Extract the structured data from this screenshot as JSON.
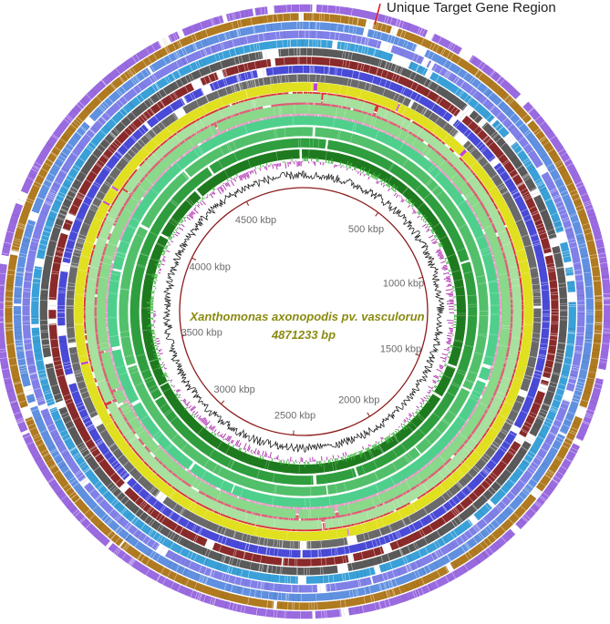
{
  "genome": {
    "organism": "Xanthomonas axonopodis pv. vasculorun",
    "length_label": "4871233 bp",
    "length_bp": 4871233,
    "title_color": "#8a8a10"
  },
  "annotation": {
    "label": "Unique Target Gene Region",
    "line_color": "#e02020"
  },
  "axis": {
    "ticks": [
      {
        "bp": 500000,
        "label": "500 kbp"
      },
      {
        "bp": 1000000,
        "label": "1000 kbp"
      },
      {
        "bp": 1500000,
        "label": "1500 kbp"
      },
      {
        "bp": 2000000,
        "label": "2000 kbp"
      },
      {
        "bp": 2500000,
        "label": "2500 kbp"
      },
      {
        "bp": 3000000,
        "label": "3000 kbp"
      },
      {
        "bp": 3500000,
        "label": "3500 kbp"
      },
      {
        "bp": 4000000,
        "label": "4000 kbp"
      },
      {
        "bp": 4500000,
        "label": "4500 kbp"
      }
    ],
    "backbone_color": "#8b1a1a"
  },
  "gc_content_color": "#222222",
  "gc_skew_colors": {
    "positive": "#3cb43c",
    "negative": "#b43cb4"
  },
  "rings_inner": [
    {
      "color": "#1e7a1e"
    },
    {
      "color": "#2f9e3f"
    },
    {
      "color": "#52c06a"
    },
    {
      "color": "#4ed08c"
    },
    {
      "color": "#8ad88a"
    },
    {
      "color": "#a8e0a0"
    },
    {
      "color": "#e0e020"
    }
  ],
  "rings_outer": [
    {
      "color": "#e8a0c8"
    },
    {
      "color": "#e0607a"
    },
    {
      "color": "#e03030"
    },
    {
      "color": "#c040e0"
    },
    {
      "color": "#6a6a6a"
    },
    {
      "color": "#4a4ad8"
    },
    {
      "color": "#8a2a2a"
    },
    {
      "color": "#5a5a5a"
    },
    {
      "color": "#3aa0d8"
    },
    {
      "color": "#8080e8"
    },
    {
      "color": "#6090e0"
    },
    {
      "color": "#b07a20"
    },
    {
      "color": "#9a6ae0"
    }
  ]
}
